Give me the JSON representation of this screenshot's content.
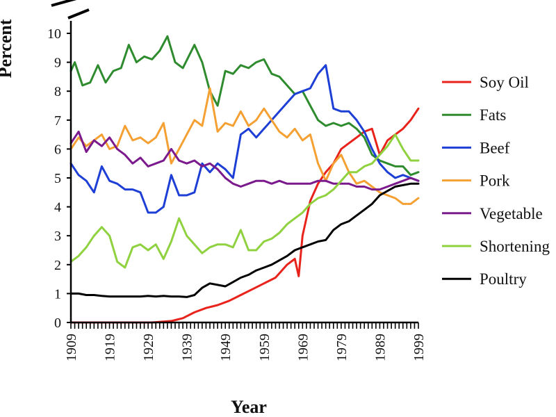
{
  "chart_data": {
    "type": "line",
    "title": "",
    "xlabel": "Year",
    "ylabel": "Percent",
    "xlim": [
      1909,
      1999
    ],
    "ylim": [
      0,
      10
    ],
    "x_ticks": [
      "1909",
      "1919",
      "1929",
      "1939",
      "1949",
      "1959",
      "1969",
      "1979",
      "1989",
      "1999"
    ],
    "y_ticks": [
      "0",
      "1",
      "2",
      "3",
      "4",
      "5",
      "6",
      "7",
      "8",
      "9",
      "10"
    ],
    "legend_position": "right",
    "series": [
      {
        "name": "Soy Oil",
        "color": "#e8231c",
        "points": [
          [
            1909,
            0
          ],
          [
            1920,
            0
          ],
          [
            1930,
            0
          ],
          [
            1935,
            0.05
          ],
          [
            1938,
            0.15
          ],
          [
            1941,
            0.35
          ],
          [
            1944,
            0.5
          ],
          [
            1947,
            0.6
          ],
          [
            1950,
            0.75
          ],
          [
            1953,
            0.95
          ],
          [
            1956,
            1.15
          ],
          [
            1959,
            1.35
          ],
          [
            1962,
            1.55
          ],
          [
            1965,
            2.0
          ],
          [
            1967,
            2.2
          ],
          [
            1968,
            1.6
          ],
          [
            1969,
            3.0
          ],
          [
            1971,
            4.2
          ],
          [
            1973,
            4.8
          ],
          [
            1975,
            5.2
          ],
          [
            1977,
            5.5
          ],
          [
            1979,
            6.0
          ],
          [
            1981,
            6.2
          ],
          [
            1983,
            6.4
          ],
          [
            1985,
            6.6
          ],
          [
            1987,
            6.7
          ],
          [
            1989,
            5.8
          ],
          [
            1991,
            6.3
          ],
          [
            1993,
            6.5
          ],
          [
            1995,
            6.7
          ],
          [
            1997,
            7.0
          ],
          [
            1999,
            7.4
          ]
        ]
      },
      {
        "name": "Fats",
        "color": "#2e8b2e",
        "points": [
          [
            1909,
            8.7
          ],
          [
            1910,
            9.0
          ],
          [
            1912,
            8.2
          ],
          [
            1914,
            8.3
          ],
          [
            1916,
            8.9
          ],
          [
            1918,
            8.3
          ],
          [
            1920,
            8.7
          ],
          [
            1922,
            8.8
          ],
          [
            1924,
            9.6
          ],
          [
            1926,
            9.0
          ],
          [
            1928,
            9.2
          ],
          [
            1930,
            9.1
          ],
          [
            1932,
            9.4
          ],
          [
            1934,
            9.9
          ],
          [
            1936,
            9.0
          ],
          [
            1938,
            8.8
          ],
          [
            1941,
            9.6
          ],
          [
            1943,
            9.0
          ],
          [
            1945,
            8.0
          ],
          [
            1947,
            7.5
          ],
          [
            1949,
            8.7
          ],
          [
            1951,
            8.6
          ],
          [
            1953,
            8.9
          ],
          [
            1955,
            8.8
          ],
          [
            1957,
            9.0
          ],
          [
            1959,
            9.1
          ],
          [
            1961,
            8.6
          ],
          [
            1963,
            8.5
          ],
          [
            1965,
            8.2
          ],
          [
            1967,
            7.9
          ],
          [
            1969,
            8.0
          ],
          [
            1971,
            7.5
          ],
          [
            1973,
            7.0
          ],
          [
            1975,
            6.8
          ],
          [
            1977,
            6.9
          ],
          [
            1979,
            6.8
          ],
          [
            1981,
            6.9
          ],
          [
            1983,
            6.7
          ],
          [
            1985,
            6.4
          ],
          [
            1987,
            5.8
          ],
          [
            1989,
            5.6
          ],
          [
            1991,
            5.5
          ],
          [
            1993,
            5.4
          ],
          [
            1995,
            5.4
          ],
          [
            1997,
            5.1
          ],
          [
            1999,
            5.2
          ]
        ]
      },
      {
        "name": "Beef",
        "color": "#1e3fd6",
        "points": [
          [
            1909,
            5.5
          ],
          [
            1911,
            5.1
          ],
          [
            1913,
            4.9
          ],
          [
            1915,
            4.5
          ],
          [
            1917,
            5.4
          ],
          [
            1919,
            4.9
          ],
          [
            1921,
            4.8
          ],
          [
            1923,
            4.6
          ],
          [
            1925,
            4.6
          ],
          [
            1927,
            4.5
          ],
          [
            1929,
            3.8
          ],
          [
            1931,
            3.8
          ],
          [
            1933,
            4.0
          ],
          [
            1935,
            5.1
          ],
          [
            1937,
            4.4
          ],
          [
            1939,
            4.4
          ],
          [
            1941,
            4.5
          ],
          [
            1943,
            5.5
          ],
          [
            1945,
            5.2
          ],
          [
            1947,
            5.5
          ],
          [
            1949,
            5.3
          ],
          [
            1951,
            5.0
          ],
          [
            1953,
            6.5
          ],
          [
            1955,
            6.7
          ],
          [
            1957,
            6.4
          ],
          [
            1959,
            6.7
          ],
          [
            1961,
            7.0
          ],
          [
            1963,
            7.3
          ],
          [
            1965,
            7.6
          ],
          [
            1967,
            7.9
          ],
          [
            1969,
            8.0
          ],
          [
            1971,
            8.1
          ],
          [
            1973,
            8.6
          ],
          [
            1975,
            8.9
          ],
          [
            1977,
            7.4
          ],
          [
            1979,
            7.3
          ],
          [
            1981,
            7.3
          ],
          [
            1983,
            7.0
          ],
          [
            1985,
            6.6
          ],
          [
            1987,
            6.0
          ],
          [
            1989,
            5.5
          ],
          [
            1991,
            5.2
          ],
          [
            1993,
            5.0
          ],
          [
            1995,
            5.1
          ],
          [
            1997,
            5.0
          ],
          [
            1999,
            4.9
          ]
        ]
      },
      {
        "name": "Pork",
        "color": "#f5a033",
        "points": [
          [
            1909,
            6.0
          ],
          [
            1911,
            6.4
          ],
          [
            1913,
            6.1
          ],
          [
            1915,
            6.3
          ],
          [
            1917,
            6.5
          ],
          [
            1919,
            6.0
          ],
          [
            1921,
            6.1
          ],
          [
            1923,
            6.8
          ],
          [
            1925,
            6.3
          ],
          [
            1927,
            6.4
          ],
          [
            1929,
            6.2
          ],
          [
            1931,
            6.4
          ],
          [
            1933,
            6.9
          ],
          [
            1935,
            5.5
          ],
          [
            1937,
            6.0
          ],
          [
            1939,
            6.5
          ],
          [
            1941,
            7.0
          ],
          [
            1943,
            6.8
          ],
          [
            1945,
            8.1
          ],
          [
            1947,
            6.6
          ],
          [
            1949,
            6.9
          ],
          [
            1951,
            6.8
          ],
          [
            1953,
            7.3
          ],
          [
            1955,
            6.8
          ],
          [
            1957,
            7.0
          ],
          [
            1959,
            7.4
          ],
          [
            1961,
            7.0
          ],
          [
            1963,
            6.6
          ],
          [
            1965,
            6.4
          ],
          [
            1967,
            6.7
          ],
          [
            1969,
            6.3
          ],
          [
            1971,
            6.5
          ],
          [
            1973,
            5.5
          ],
          [
            1975,
            4.9
          ],
          [
            1977,
            5.5
          ],
          [
            1979,
            5.8
          ],
          [
            1981,
            5.2
          ],
          [
            1983,
            4.8
          ],
          [
            1985,
            4.9
          ],
          [
            1987,
            4.7
          ],
          [
            1989,
            4.5
          ],
          [
            1991,
            4.4
          ],
          [
            1993,
            4.3
          ],
          [
            1995,
            4.1
          ],
          [
            1997,
            4.1
          ],
          [
            1999,
            4.3
          ]
        ]
      },
      {
        "name": "Vegetable",
        "color": "#7b1a8c",
        "points": [
          [
            1909,
            6.2
          ],
          [
            1911,
            6.6
          ],
          [
            1913,
            5.9
          ],
          [
            1915,
            6.3
          ],
          [
            1917,
            6.1
          ],
          [
            1919,
            6.4
          ],
          [
            1921,
            6.0
          ],
          [
            1923,
            5.8
          ],
          [
            1925,
            5.5
          ],
          [
            1927,
            5.7
          ],
          [
            1929,
            5.4
          ],
          [
            1931,
            5.5
          ],
          [
            1933,
            5.6
          ],
          [
            1935,
            6.0
          ],
          [
            1937,
            5.6
          ],
          [
            1939,
            5.5
          ],
          [
            1941,
            5.6
          ],
          [
            1943,
            5.4
          ],
          [
            1945,
            5.5
          ],
          [
            1947,
            5.3
          ],
          [
            1949,
            5.0
          ],
          [
            1951,
            4.8
          ],
          [
            1953,
            4.7
          ],
          [
            1955,
            4.8
          ],
          [
            1957,
            4.9
          ],
          [
            1959,
            4.9
          ],
          [
            1961,
            4.8
          ],
          [
            1963,
            4.9
          ],
          [
            1965,
            4.8
          ],
          [
            1967,
            4.8
          ],
          [
            1969,
            4.8
          ],
          [
            1971,
            4.8
          ],
          [
            1973,
            4.9
          ],
          [
            1975,
            4.9
          ],
          [
            1977,
            4.8
          ],
          [
            1979,
            4.8
          ],
          [
            1981,
            4.8
          ],
          [
            1983,
            4.7
          ],
          [
            1985,
            4.7
          ],
          [
            1987,
            4.6
          ],
          [
            1989,
            4.6
          ],
          [
            1991,
            4.7
          ],
          [
            1993,
            4.8
          ],
          [
            1995,
            4.9
          ],
          [
            1997,
            5.0
          ],
          [
            1999,
            4.9
          ]
        ]
      },
      {
        "name": "Shortening",
        "color": "#8fd13f",
        "points": [
          [
            1909,
            2.1
          ],
          [
            1911,
            2.3
          ],
          [
            1913,
            2.6
          ],
          [
            1915,
            3.0
          ],
          [
            1917,
            3.3
          ],
          [
            1919,
            3.0
          ],
          [
            1921,
            2.1
          ],
          [
            1923,
            1.9
          ],
          [
            1925,
            2.6
          ],
          [
            1927,
            2.7
          ],
          [
            1929,
            2.5
          ],
          [
            1931,
            2.7
          ],
          [
            1933,
            2.2
          ],
          [
            1935,
            2.8
          ],
          [
            1937,
            3.6
          ],
          [
            1939,
            3.0
          ],
          [
            1941,
            2.7
          ],
          [
            1943,
            2.4
          ],
          [
            1945,
            2.6
          ],
          [
            1947,
            2.7
          ],
          [
            1949,
            2.7
          ],
          [
            1951,
            2.6
          ],
          [
            1953,
            3.2
          ],
          [
            1955,
            2.5
          ],
          [
            1957,
            2.5
          ],
          [
            1959,
            2.8
          ],
          [
            1961,
            2.9
          ],
          [
            1963,
            3.1
          ],
          [
            1965,
            3.4
          ],
          [
            1967,
            3.6
          ],
          [
            1969,
            3.8
          ],
          [
            1971,
            4.1
          ],
          [
            1973,
            4.3
          ],
          [
            1975,
            4.4
          ],
          [
            1977,
            4.6
          ],
          [
            1979,
            4.9
          ],
          [
            1981,
            5.2
          ],
          [
            1983,
            5.2
          ],
          [
            1985,
            5.4
          ],
          [
            1987,
            5.5
          ],
          [
            1989,
            5.8
          ],
          [
            1991,
            6.1
          ],
          [
            1993,
            6.5
          ],
          [
            1995,
            6.0
          ],
          [
            1997,
            5.6
          ],
          [
            1999,
            5.6
          ]
        ]
      },
      {
        "name": "Poultry",
        "color": "#000000",
        "points": [
          [
            1909,
            1.0
          ],
          [
            1911,
            1.0
          ],
          [
            1913,
            0.95
          ],
          [
            1915,
            0.95
          ],
          [
            1917,
            0.92
          ],
          [
            1919,
            0.9
          ],
          [
            1921,
            0.9
          ],
          [
            1923,
            0.9
          ],
          [
            1925,
            0.9
          ],
          [
            1927,
            0.9
          ],
          [
            1929,
            0.92
          ],
          [
            1931,
            0.9
          ],
          [
            1933,
            0.92
          ],
          [
            1935,
            0.9
          ],
          [
            1937,
            0.9
          ],
          [
            1939,
            0.88
          ],
          [
            1941,
            0.95
          ],
          [
            1943,
            1.2
          ],
          [
            1945,
            1.35
          ],
          [
            1947,
            1.3
          ],
          [
            1949,
            1.25
          ],
          [
            1951,
            1.4
          ],
          [
            1953,
            1.55
          ],
          [
            1955,
            1.65
          ],
          [
            1957,
            1.8
          ],
          [
            1959,
            1.9
          ],
          [
            1961,
            2.0
          ],
          [
            1963,
            2.15
          ],
          [
            1965,
            2.3
          ],
          [
            1967,
            2.5
          ],
          [
            1969,
            2.6
          ],
          [
            1971,
            2.7
          ],
          [
            1973,
            2.8
          ],
          [
            1975,
            2.85
          ],
          [
            1977,
            3.2
          ],
          [
            1979,
            3.4
          ],
          [
            1981,
            3.5
          ],
          [
            1983,
            3.7
          ],
          [
            1985,
            3.9
          ],
          [
            1987,
            4.1
          ],
          [
            1989,
            4.4
          ],
          [
            1991,
            4.55
          ],
          [
            1993,
            4.7
          ],
          [
            1995,
            4.75
          ],
          [
            1997,
            4.8
          ],
          [
            1999,
            4.8
          ]
        ]
      }
    ]
  }
}
